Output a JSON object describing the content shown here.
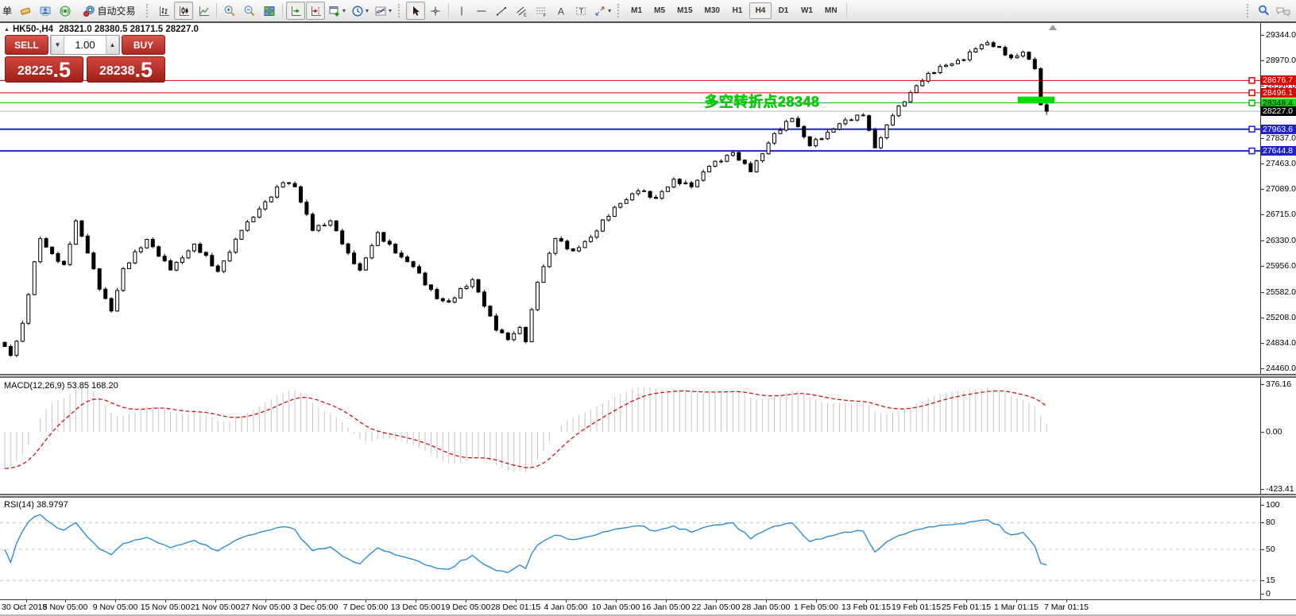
{
  "app": {
    "menu_fragment": "单"
  },
  "toolbar": {
    "autotrade_label": "自动交易",
    "timeframes": [
      "M1",
      "M5",
      "M15",
      "M30",
      "H1",
      "H4",
      "D1",
      "W1",
      "MN"
    ],
    "active_timeframe": "H4",
    "icon_names": [
      "new-order",
      "community",
      "signals",
      "autotrade",
      "bar-chart",
      "candlestick-chart",
      "line-chart",
      "zoom-in",
      "zoom-out",
      "tile-windows",
      "auto-scroll",
      "chart-shift",
      "new-chart",
      "period",
      "indicators",
      "cursor",
      "crosshair",
      "vertical-line",
      "horizontal-line",
      "trendline",
      "equidistant-channel",
      "fibonacci",
      "text",
      "text-label",
      "arrows",
      "search",
      "chat"
    ]
  },
  "chart": {
    "symbol_period": "HK50-,H4",
    "ohlc_text": "28321.0 28380.5 28171.5 28227.0",
    "trade_panel": {
      "sell_label": "SELL",
      "buy_label": "BUY",
      "volume": "1.00",
      "sell_price_main": "28225",
      "sell_price_frac": ".5",
      "buy_price_main": "28238",
      "buy_price_frac": ".5"
    },
    "annotation": "多空转折点28348"
  },
  "macd": {
    "label": "MACD(12,26,9) 53.85 168.20",
    "ticks": [
      "376.16",
      "0.00",
      "-423.41"
    ]
  },
  "rsi": {
    "label": "RSI(14) 38.9797",
    "ticks": [
      "100",
      "80",
      "50",
      "15",
      "0"
    ]
  },
  "chart_data": {
    "type": "candlestick",
    "symbol": "HK50-",
    "timeframe": "H4",
    "last_ohlc": {
      "open": 28321.0,
      "high": 28380.5,
      "low": 28171.5,
      "close": 28227.0
    },
    "bid": 28225.5,
    "ask": 28238.5,
    "price_axis": {
      "top": 29344.0,
      "bottom": 24460.0
    },
    "y_ticks": [
      29344.0,
      28970.0,
      28596.0,
      28222.0,
      27837.0,
      27463.0,
      27089.0,
      26715.0,
      26330.0,
      25956.0,
      25582.0,
      25208.0,
      24834.0,
      24460.0
    ],
    "levels": [
      {
        "value": 28676.7,
        "color": "#e00000",
        "label_bg": "#e00000",
        "label_text_color": "#ffffff",
        "width": 1
      },
      {
        "value": 28496.1,
        "color": "#e00000",
        "label_bg": "#e00000",
        "label_text_color": "#ffffff",
        "width": 1
      },
      {
        "value": 28348.4,
        "color": "#00c000",
        "label_bg": "#00e000",
        "label_text_color": "#000000",
        "width": 1
      },
      {
        "value": 28227.0,
        "color": "#bcbcbc",
        "label_bg": "#000000",
        "label_text_color": "#ffffff",
        "width": 1,
        "current": true
      },
      {
        "value": 27963.6,
        "color": "#2222cc",
        "label_bg": "#2222cc",
        "label_text_color": "#ffffff",
        "width": 2
      },
      {
        "value": 27644.8,
        "color": "#2222cc",
        "label_bg": "#2222cc",
        "label_text_color": "#ffffff",
        "width": 2
      }
    ],
    "green_zone": {
      "price_top": 28440,
      "price_bottom": 28340,
      "color": "#00dd00"
    },
    "x_labels": [
      "30 Oct 2018",
      "5 Nov 05:00",
      "9 Nov 05:00",
      "15 Nov 05:00",
      "21 Nov 05:00",
      "27 Nov 05:00",
      "3 Dec 05:00",
      "7 Dec 05:00",
      "13 Dec 05:00",
      "19 Dec 05:00",
      "28 Dec 01:15",
      "4 Jan 05:00",
      "10 Jan 05:00",
      "16 Jan 05:00",
      "22 Jan 05:00",
      "28 Jan 05:00",
      "1 Feb 05:00",
      "13 Feb 01:15",
      "19 Feb 01:15",
      "25 Feb 01:15",
      "1 Mar 01:15",
      "7 Mar 01:15"
    ],
    "close_anchors": [
      [
        0,
        24780
      ],
      [
        1,
        24650
      ],
      [
        3,
        25120
      ],
      [
        5,
        26020
      ],
      [
        6,
        26360
      ],
      [
        8,
        26140
      ],
      [
        10,
        25980
      ],
      [
        12,
        26620
      ],
      [
        14,
        26150
      ],
      [
        16,
        25620
      ],
      [
        18,
        25300
      ],
      [
        20,
        25920
      ],
      [
        24,
        26350
      ],
      [
        28,
        25900
      ],
      [
        32,
        26280
      ],
      [
        36,
        25880
      ],
      [
        40,
        26480
      ],
      [
        44,
        26900
      ],
      [
        47,
        27180
      ],
      [
        49,
        27120
      ],
      [
        52,
        26480
      ],
      [
        55,
        26620
      ],
      [
        58,
        26150
      ],
      [
        60,
        25900
      ],
      [
        63,
        26450
      ],
      [
        66,
        26150
      ],
      [
        69,
        25950
      ],
      [
        73,
        25480
      ],
      [
        75,
        25430
      ],
      [
        79,
        25760
      ],
      [
        83,
        25020
      ],
      [
        85,
        24880
      ],
      [
        87,
        25060
      ],
      [
        88,
        24850
      ],
      [
        90,
        25720
      ],
      [
        93,
        26360
      ],
      [
        96,
        26180
      ],
      [
        99,
        26380
      ],
      [
        103,
        26820
      ],
      [
        107,
        27060
      ],
      [
        110,
        26950
      ],
      [
        113,
        27230
      ],
      [
        116,
        27120
      ],
      [
        119,
        27420
      ],
      [
        123,
        27620
      ],
      [
        126,
        27340
      ],
      [
        130,
        27900
      ],
      [
        133,
        28120
      ],
      [
        136,
        27720
      ],
      [
        139,
        27920
      ],
      [
        142,
        28100
      ],
      [
        145,
        28160
      ],
      [
        147,
        27690
      ],
      [
        150,
        28160
      ],
      [
        153,
        28500
      ],
      [
        156,
        28780
      ],
      [
        159,
        28900
      ],
      [
        162,
        28980
      ],
      [
        164,
        29140
      ],
      [
        166,
        29230
      ],
      [
        168,
        29160
      ],
      [
        170,
        29010
      ],
      [
        172,
        29090
      ],
      [
        174,
        28850
      ],
      [
        175,
        28321
      ],
      [
        176,
        28227
      ]
    ],
    "indicators": {
      "macd": {
        "fast": 12,
        "slow": 26,
        "signal_period": 9,
        "value": 53.85,
        "signal": 168.2,
        "ticks": [
          376.16,
          0.0,
          -423.41
        ]
      },
      "rsi": {
        "period": 14,
        "value": 38.9797,
        "ticks": [
          100,
          80,
          50,
          15,
          0
        ],
        "levels": [
          80,
          50,
          15
        ]
      }
    }
  }
}
